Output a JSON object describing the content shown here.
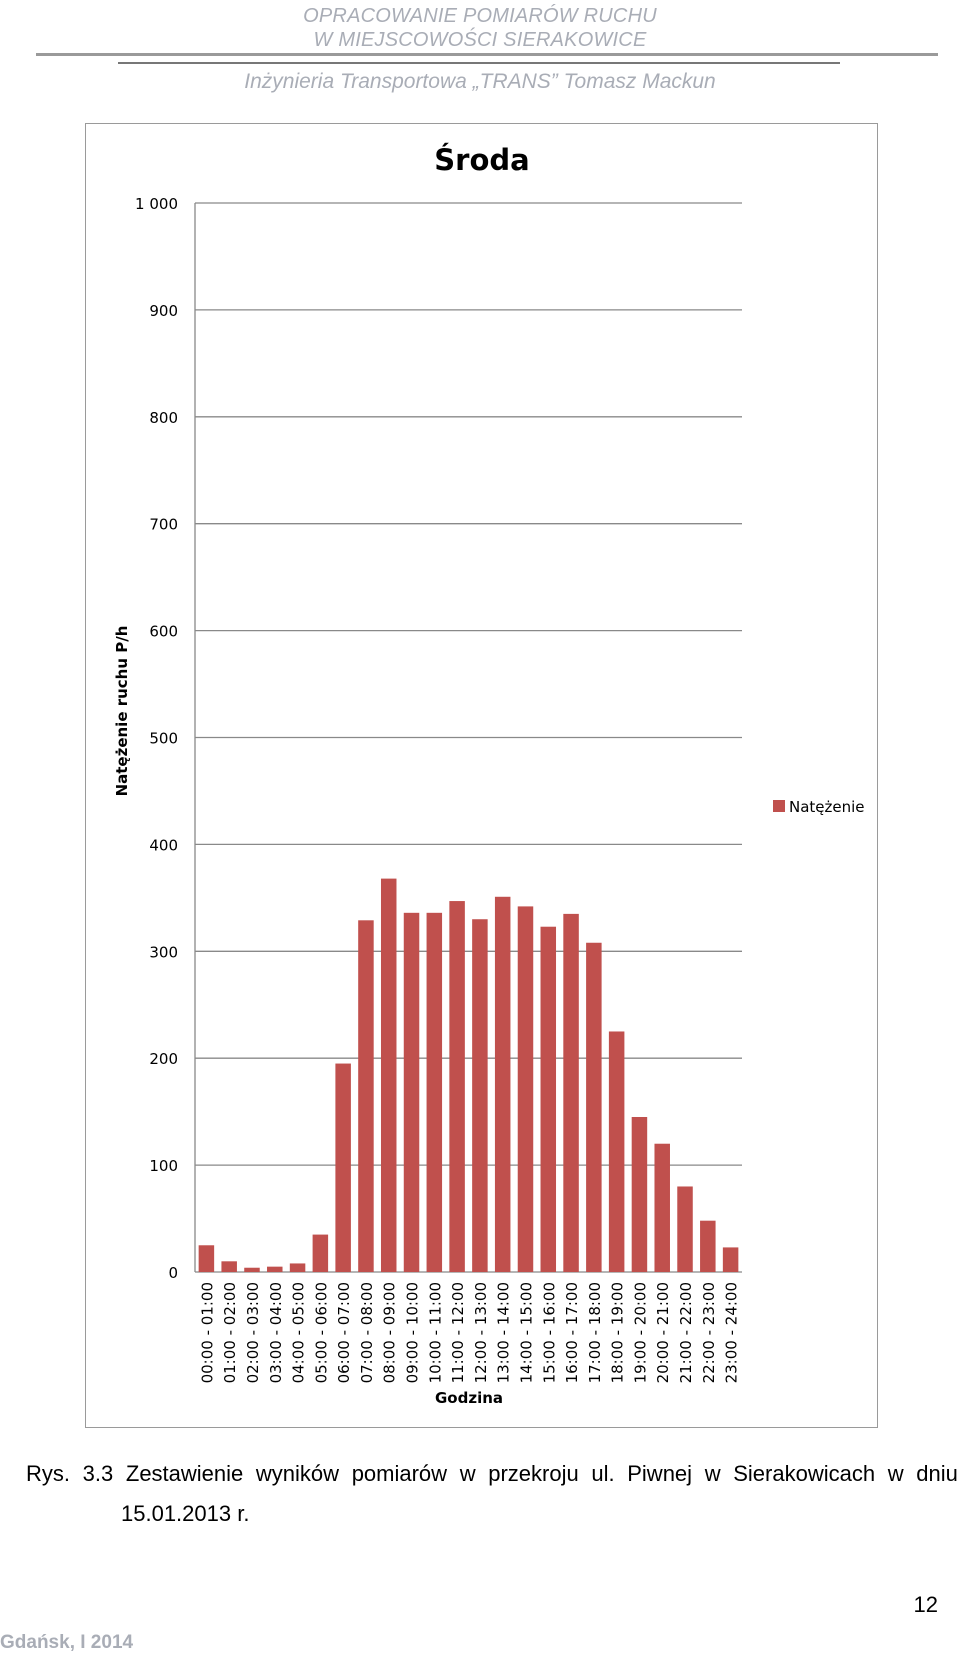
{
  "header": {
    "line1": "OPRACOWANIE POMIARÓW RUCHU",
    "line2": "W MIEJSCOWOŚCI SIERAKOWICE",
    "company": "Inżynieria Transportowa „TRANS” Tomasz Mackun"
  },
  "chart_data": {
    "type": "bar",
    "title": "Środa",
    "xlabel": "Godzina",
    "ylabel": "Natężenie ruchu  P/h",
    "ylim": [
      0,
      1000
    ],
    "yticks": [
      0,
      100,
      200,
      300,
      400,
      500,
      600,
      700,
      800,
      900,
      1000
    ],
    "ytick_labels": [
      "0",
      "100",
      "200",
      "300",
      "400",
      "500",
      "600",
      "700",
      "800",
      "900",
      "1 000"
    ],
    "grid": true,
    "legend_position": "right",
    "categories": [
      "00:00 - 01:00",
      "01:00 - 02:00",
      "02:00 - 03:00",
      "03:00 - 04:00",
      "04:00 - 05:00",
      "05:00 - 06:00",
      "06:00 - 07:00",
      "07:00 - 08:00",
      "08:00 - 09:00",
      "09:00 - 10:00",
      "10:00 - 11:00",
      "11:00 - 12:00",
      "12:00 - 13:00",
      "13:00 - 14:00",
      "14:00 - 15:00",
      "15:00 - 16:00",
      "16:00 - 17:00",
      "17:00 - 18:00",
      "18:00 - 19:00",
      "19:00 - 20:00",
      "20:00 - 21:00",
      "21:00 - 22:00",
      "22:00 - 23:00",
      "23:00 - 24:00"
    ],
    "series": [
      {
        "name": "Natężenie",
        "color": "#c0504d",
        "values": [
          25,
          10,
          4,
          5,
          8,
          35,
          195,
          329,
          368,
          336,
          336,
          347,
          330,
          351,
          342,
          323,
          335,
          308,
          225,
          145,
          120,
          80,
          48,
          23
        ]
      }
    ]
  },
  "caption": {
    "label": "Rys.",
    "words": [
      "3.3",
      "Zestawienie",
      "wyników",
      "pomiarów",
      "w",
      "przekroju",
      "ul.",
      "Piwnej",
      "w",
      "Sierakowicach",
      "w",
      "dniu"
    ],
    "line2": "15.01.2013 r."
  },
  "page_number": "12",
  "footer": "Gdańsk, I 2014"
}
